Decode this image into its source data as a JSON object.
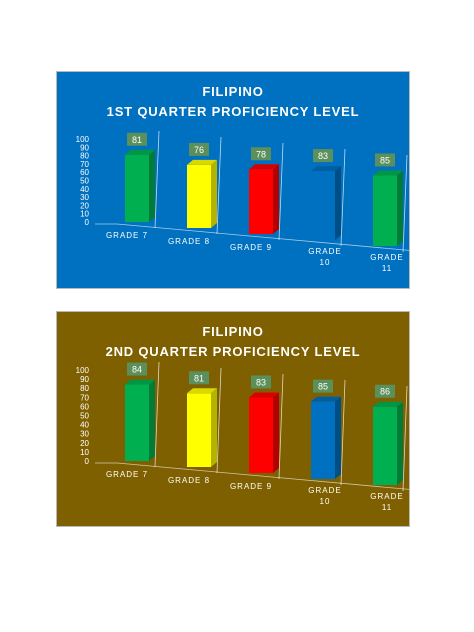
{
  "chart_data": [
    {
      "type": "bar",
      "title": "FILIPINO",
      "subtitle": "1ST QUARTER PROFICIENCY LEVEL",
      "categories": [
        "GRADE 7",
        "GRADE 8",
        "GRADE 9",
        "GRADE 10",
        "GRADE 11"
      ],
      "values": [
        81,
        76,
        78,
        83,
        85
      ],
      "bar_colors": [
        "#00b050",
        "#ffff00",
        "#ff0000",
        "#0070c0",
        "#00b050"
      ],
      "ylim": [
        0,
        100
      ],
      "yticks": [
        "0",
        "10",
        "20",
        "30",
        "40",
        "50",
        "60",
        "70",
        "80",
        "90",
        "100"
      ],
      "background": "#0070c0",
      "grid": false,
      "legend": "none"
    },
    {
      "type": "bar",
      "title": "FILIPINO",
      "subtitle": "2ND QUARTER PROFICIENCY LEVEL",
      "categories": [
        "GRADE 7",
        "GRADE 8",
        "GRADE 9",
        "GRADE 10",
        "GRADE 11"
      ],
      "values": [
        84,
        81,
        83,
        85,
        86
      ],
      "bar_colors": [
        "#00b050",
        "#ffff00",
        "#ff0000",
        "#0070c0",
        "#00b050"
      ],
      "ylim": [
        0,
        100
      ],
      "yticks": [
        "0",
        "10",
        "20",
        "30",
        "40",
        "50",
        "60",
        "70",
        "80",
        "90",
        "100"
      ],
      "background": "#7f6000",
      "grid": false,
      "legend": "none"
    }
  ]
}
